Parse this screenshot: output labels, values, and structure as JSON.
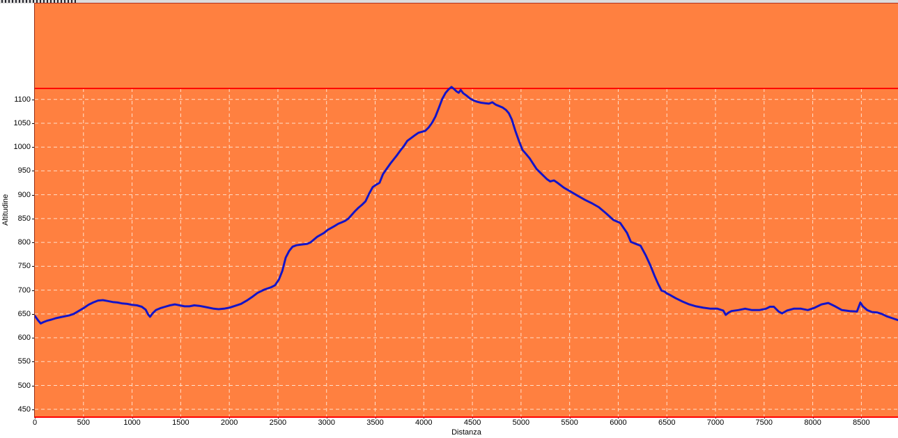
{
  "chart_data": {
    "type": "line",
    "title": "",
    "xlabel": "Distanza",
    "ylabel": "Altitudine",
    "x_ticks": [
      0,
      500,
      1000,
      1500,
      2000,
      2500,
      3000,
      3500,
      4000,
      4500,
      5000,
      5500,
      6000,
      6500,
      7000,
      7500,
      8000,
      8500
    ],
    "y_ticks": [
      450,
      500,
      550,
      600,
      650,
      700,
      750,
      800,
      850,
      900,
      950,
      1000,
      1050,
      1100
    ],
    "xlim": [
      0,
      8877
    ],
    "ylim": [
      435,
      1123
    ],
    "grid": true,
    "legend": false,
    "max_altitude_line": 1123,
    "colors": {
      "plot_background": "#ff8040",
      "outer_background": "#ffffff",
      "gridline": "#ffe0cc",
      "profile_line": "#1414c8",
      "max_line": "#ff0000",
      "border_left": "#993018",
      "border_bottom": "#ff0000",
      "tick_text": "#000000"
    },
    "series": [
      {
        "name": "Altitudine",
        "color": "#1414c8",
        "points": [
          [
            0,
            646
          ],
          [
            35,
            636
          ],
          [
            60,
            630
          ],
          [
            90,
            633
          ],
          [
            130,
            636
          ],
          [
            170,
            638
          ],
          [
            215,
            641
          ],
          [
            260,
            643
          ],
          [
            310,
            645
          ],
          [
            355,
            647
          ],
          [
            400,
            650
          ],
          [
            450,
            656
          ],
          [
            500,
            662
          ],
          [
            550,
            669
          ],
          [
            600,
            674
          ],
          [
            650,
            678
          ],
          [
            700,
            679
          ],
          [
            750,
            677
          ],
          [
            800,
            675
          ],
          [
            850,
            674
          ],
          [
            900,
            672
          ],
          [
            950,
            671
          ],
          [
            1000,
            669
          ],
          [
            1050,
            668
          ],
          [
            1100,
            665
          ],
          [
            1140,
            659
          ],
          [
            1165,
            649
          ],
          [
            1185,
            644
          ],
          [
            1210,
            651
          ],
          [
            1245,
            658
          ],
          [
            1290,
            662
          ],
          [
            1340,
            665
          ],
          [
            1390,
            668
          ],
          [
            1440,
            670
          ],
          [
            1490,
            668
          ],
          [
            1540,
            666
          ],
          [
            1590,
            666
          ],
          [
            1640,
            668
          ],
          [
            1690,
            667
          ],
          [
            1740,
            665
          ],
          [
            1790,
            663
          ],
          [
            1840,
            661
          ],
          [
            1890,
            660
          ],
          [
            1945,
            661
          ],
          [
            2000,
            663
          ],
          [
            2060,
            667
          ],
          [
            2120,
            671
          ],
          [
            2180,
            678
          ],
          [
            2230,
            685
          ],
          [
            2290,
            694
          ],
          [
            2360,
            701
          ],
          [
            2430,
            706
          ],
          [
            2470,
            710
          ],
          [
            2510,
            722
          ],
          [
            2545,
            740
          ],
          [
            2580,
            768
          ],
          [
            2615,
            782
          ],
          [
            2650,
            791
          ],
          [
            2690,
            794
          ],
          [
            2725,
            795
          ],
          [
            2760,
            796
          ],
          [
            2800,
            797
          ],
          [
            2835,
            800
          ],
          [
            2870,
            806
          ],
          [
            2905,
            812
          ],
          [
            2940,
            816
          ],
          [
            2975,
            820
          ],
          [
            3010,
            826
          ],
          [
            3045,
            830
          ],
          [
            3080,
            834
          ],
          [
            3120,
            839
          ],
          [
            3155,
            842
          ],
          [
            3190,
            845
          ],
          [
            3225,
            850
          ],
          [
            3260,
            858
          ],
          [
            3295,
            866
          ],
          [
            3330,
            873
          ],
          [
            3365,
            879
          ],
          [
            3400,
            886
          ],
          [
            3440,
            903
          ],
          [
            3475,
            916
          ],
          [
            3510,
            921
          ],
          [
            3545,
            925
          ],
          [
            3580,
            943
          ],
          [
            3620,
            955
          ],
          [
            3655,
            965
          ],
          [
            3690,
            974
          ],
          [
            3725,
            983
          ],
          [
            3760,
            993
          ],
          [
            3795,
            1002
          ],
          [
            3830,
            1013
          ],
          [
            3870,
            1019
          ],
          [
            3910,
            1025
          ],
          [
            3945,
            1030
          ],
          [
            3980,
            1032
          ],
          [
            4015,
            1034
          ],
          [
            4050,
            1041
          ],
          [
            4085,
            1051
          ],
          [
            4120,
            1064
          ],
          [
            4155,
            1082
          ],
          [
            4190,
            1101
          ],
          [
            4225,
            1114
          ],
          [
            4255,
            1121
          ],
          [
            4285,
            1126
          ],
          [
            4310,
            1122
          ],
          [
            4335,
            1117
          ],
          [
            4360,
            1114
          ],
          [
            4380,
            1120
          ],
          [
            4405,
            1113
          ],
          [
            4440,
            1108
          ],
          [
            4475,
            1102
          ],
          [
            4510,
            1098
          ],
          [
            4550,
            1095
          ],
          [
            4590,
            1093
          ],
          [
            4630,
            1092
          ],
          [
            4670,
            1091
          ],
          [
            4705,
            1094
          ],
          [
            4740,
            1089
          ],
          [
            4775,
            1086
          ],
          [
            4810,
            1083
          ],
          [
            4845,
            1078
          ],
          [
            4875,
            1071
          ],
          [
            4905,
            1058
          ],
          [
            4940,
            1035
          ],
          [
            4980,
            1012
          ],
          [
            5015,
            994
          ],
          [
            5050,
            986
          ],
          [
            5090,
            976
          ],
          [
            5125,
            965
          ],
          [
            5160,
            954
          ],
          [
            5195,
            947
          ],
          [
            5230,
            940
          ],
          [
            5265,
            933
          ],
          [
            5300,
            928
          ],
          [
            5340,
            930
          ],
          [
            5375,
            925
          ],
          [
            5440,
            915
          ],
          [
            5515,
            906
          ],
          [
            5590,
            897
          ],
          [
            5660,
            889
          ],
          [
            5730,
            882
          ],
          [
            5800,
            874
          ],
          [
            5875,
            861
          ],
          [
            5950,
            847
          ],
          [
            6020,
            841
          ],
          [
            6090,
            820
          ],
          [
            6130,
            801
          ],
          [
            6180,
            797
          ],
          [
            6230,
            793
          ],
          [
            6280,
            774
          ],
          [
            6330,
            752
          ],
          [
            6375,
            729
          ],
          [
            6410,
            713
          ],
          [
            6445,
            699
          ],
          [
            6475,
            697
          ],
          [
            6500,
            693
          ],
          [
            6530,
            690
          ],
          [
            6590,
            683
          ],
          [
            6660,
            676
          ],
          [
            6730,
            670
          ],
          [
            6800,
            666
          ],
          [
            6875,
            663
          ],
          [
            6950,
            661
          ],
          [
            7020,
            661
          ],
          [
            7080,
            657
          ],
          [
            7105,
            648
          ],
          [
            7135,
            653
          ],
          [
            7165,
            656
          ],
          [
            7235,
            658
          ],
          [
            7305,
            661
          ],
          [
            7375,
            658
          ],
          [
            7450,
            658
          ],
          [
            7520,
            661
          ],
          [
            7560,
            665
          ],
          [
            7600,
            665
          ],
          [
            7650,
            655
          ],
          [
            7685,
            651
          ],
          [
            7735,
            657
          ],
          [
            7805,
            661
          ],
          [
            7880,
            661
          ],
          [
            7950,
            658
          ],
          [
            8020,
            663
          ],
          [
            8090,
            670
          ],
          [
            8160,
            673
          ],
          [
            8230,
            666
          ],
          [
            8300,
            658
          ],
          [
            8380,
            656
          ],
          [
            8455,
            655
          ],
          [
            8490,
            674
          ],
          [
            8515,
            666
          ],
          [
            8560,
            658
          ],
          [
            8610,
            654
          ],
          [
            8665,
            653
          ],
          [
            8710,
            650
          ],
          [
            8760,
            645
          ],
          [
            8820,
            641
          ],
          [
            8877,
            637
          ]
        ]
      }
    ]
  }
}
